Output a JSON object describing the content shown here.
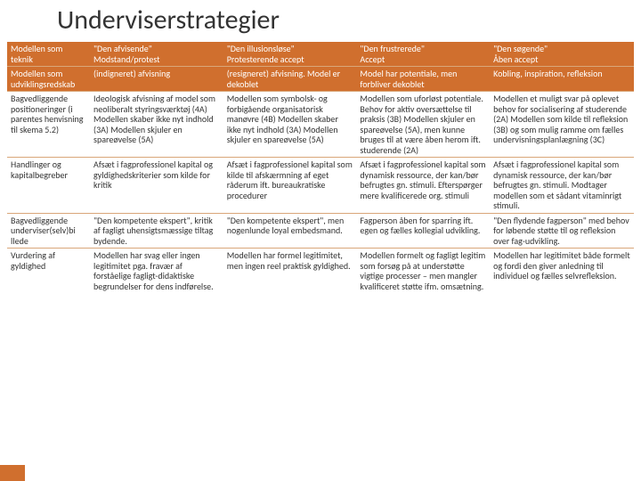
{
  "title": "Underviserstrategier",
  "colors": {
    "accent": "#d06f2e",
    "border": "#d9a679",
    "text": "#333333",
    "headerText": "#ffffff"
  },
  "columns": {
    "c1": {
      "head1": "\"Den afvisende\"",
      "head2": "Modstand/protest"
    },
    "c2": {
      "head1": "\"Den illusionsløse\"",
      "head2": "Protesterende accept"
    },
    "c3": {
      "head1": "\"Den frustrerede\"",
      "head2": "Accept"
    },
    "c4": {
      "head1": "\"Den søgende\"",
      "head2": "Åben accept"
    }
  },
  "rows": {
    "r1": {
      "label": "Modellen som teknik",
      "c1": "",
      "c2": "",
      "c3": "",
      "c4": ""
    },
    "r2": {
      "label": "Modellen som udviklingsredskab",
      "c1": "(indigneret) afvisning",
      "c2": "(resigneret) afvisning. Model er dekoblet",
      "c3": "Model har potentiale, men forbliver dekoblet",
      "c4": "Kobling, inspiration, refleksion"
    },
    "r3": {
      "label": "Bagvedliggende positioneringer (i parentes henvisning til skema 5.2)",
      "c1": "Ideologisk afvisning af model som neoliberalt styringsværktøj (4A) Modellen skaber ikke nyt indhold (3A) Modellen skjuler en spareøvelse (5A)",
      "c2": "Modellen som symbolsk- og forbigående organisatorisk manøvre (4B) Modellen skaber ikke nyt indhold (3A) Modellen skjuler en spareøvelse (5A)",
      "c3": "Modellen som uforløst potentiale. Behov for aktiv oversættelse til praksis (3B) Modellen skjuler en spareøvelse (5A), men kunne bruges til at være åben herom ift. studerende (2A)",
      "c4": "Modellen et muligt svar på oplevet behov for socialisering af studerende (2A) Modellen som kilde til refleksion (3B) og som mulig ramme om fælles undervisningsplanlægning (3C)"
    },
    "r4": {
      "label": "Handlinger og kapitalbegreber",
      "c1": "Afsæt i fagprofessionel kapital og gyldighedskriterier som kilde for kritik",
      "c2": "Afsæt i fagprofessionel kapital som kilde til afskærmning af eget råderum ift. bureaukratiske procedurer",
      "c3": "Afsæt i fagprofessionel kapital som dynamisk ressource, der kan/bør befrugtes gn. stimuli. Efterspørger mere kvalificerede org. stimuli",
      "c4": "Afsæt i fagprofessionel kapital som dynamisk ressource, der kan/bør befrugtes gn. stimuli. Modtager modellen som et sådant vitaminrigt stimuli."
    },
    "r5": {
      "label": "Bagvedliggende underviser(selv)bi llede",
      "c1": "\"Den kompetente ekspert\", kritik af fagligt uhensigtsmæssige tiltag bydende.",
      "c2": "\"Den kompetente ekspert\", men nogenlunde loyal embedsmand.",
      "c3": "Fagperson åben for sparring ift. egen og fælles kollegial udvikling.",
      "c4": "\"Den flydende fagperson\" med behov for løbende støtte til og refleksion over fag-udvikling."
    },
    "r6": {
      "label": "Vurdering af gyldighed",
      "c1": "Modellen har svag eller ingen legitimitet pga. fravær af forståelige fagligt-didaktiske begrundelser for dens indførelse.",
      "c2": "Modellen har formel legitimitet, men ingen reel praktisk gyldighed.",
      "c3": "Modellen formelt og fagligt legitim som forsøg på at understøtte vigtige processer – men mangler kvalificeret støtte ifm. omsætning.",
      "c4": "Modellen har legitimitet både formelt og fordi den giver anledning til individuel og fælles selvrefleksion."
    }
  }
}
